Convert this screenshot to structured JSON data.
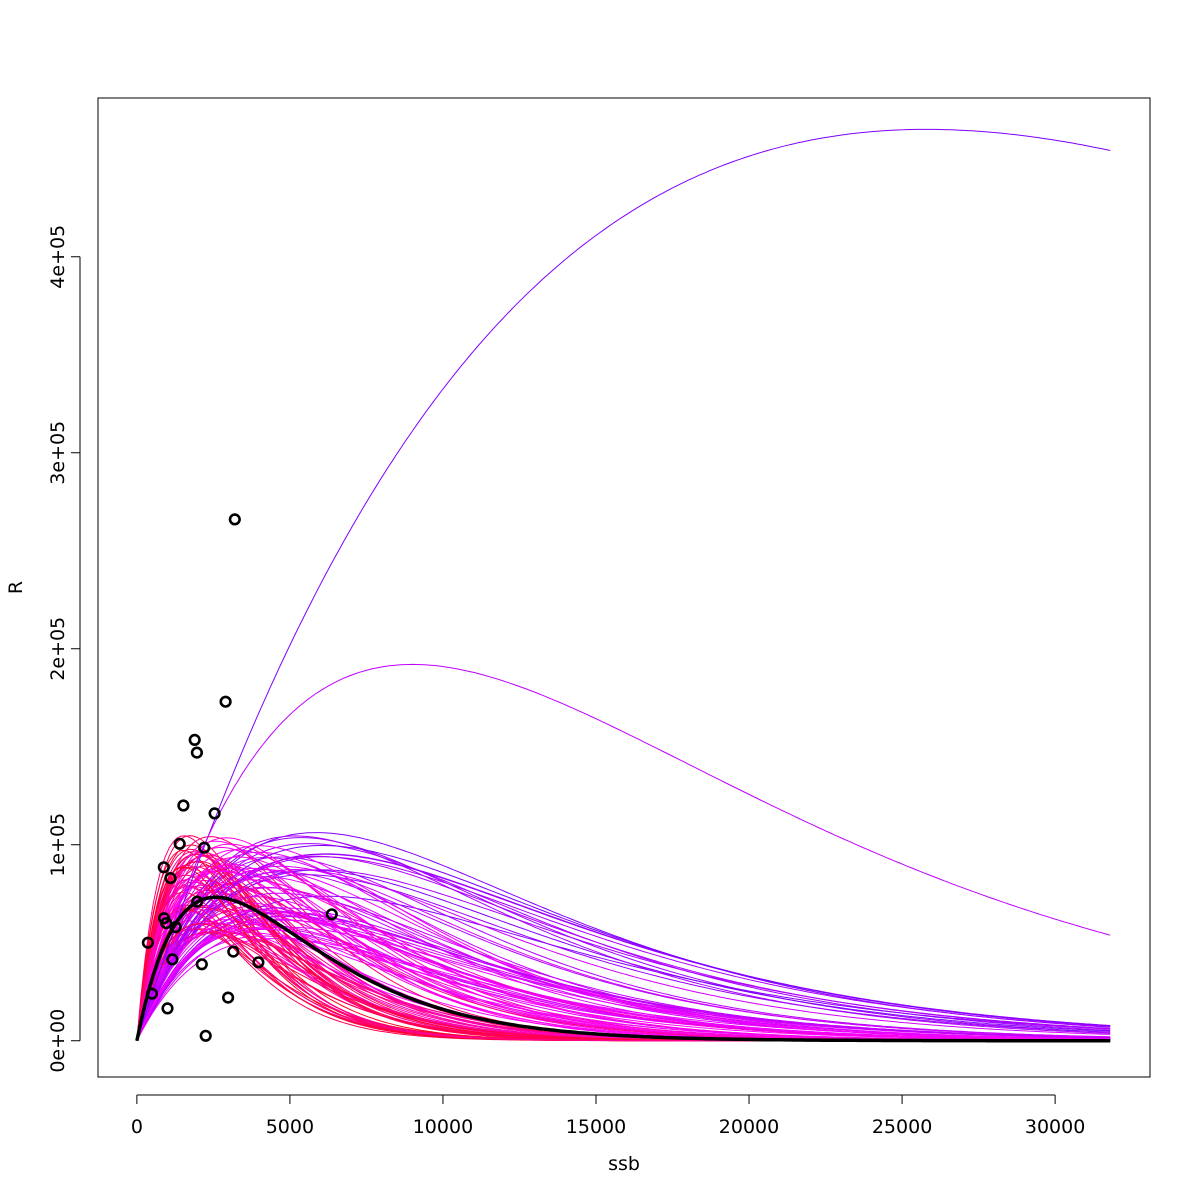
{
  "chart_data": {
    "type": "scatter",
    "title": "",
    "xlabel": "ssb",
    "ylabel": "R",
    "xlim": [
      -1270,
      33100
    ],
    "ylim": [
      -18500,
      481000
    ],
    "x_ticks": [
      {
        "value": 0,
        "label": "0"
      },
      {
        "value": 5000,
        "label": "5000"
      },
      {
        "value": 10000,
        "label": "10000"
      },
      {
        "value": 15000,
        "label": "15000"
      },
      {
        "value": 20000,
        "label": "20000"
      },
      {
        "value": 25000,
        "label": "25000"
      },
      {
        "value": 30000,
        "label": "30000"
      }
    ],
    "y_ticks": [
      {
        "value": 0,
        "label": "0e+00"
      },
      {
        "value": 100000,
        "label": "1e+05"
      },
      {
        "value": 200000,
        "label": "2e+05"
      },
      {
        "value": 300000,
        "label": "3e+05"
      },
      {
        "value": 400000,
        "label": "4e+05"
      }
    ],
    "grid": false,
    "legend": "none",
    "curve_model": "R = a * ssb * exp(-b * ssb)",
    "curve_x_max": 31800,
    "points": [
      {
        "x": 360,
        "y": 50000
      },
      {
        "x": 490,
        "y": 24000
      },
      {
        "x": 880,
        "y": 88500
      },
      {
        "x": 890,
        "y": 62500
      },
      {
        "x": 960,
        "y": 60000
      },
      {
        "x": 1000,
        "y": 16500
      },
      {
        "x": 1100,
        "y": 83000
      },
      {
        "x": 1160,
        "y": 41500
      },
      {
        "x": 1270,
        "y": 58000
      },
      {
        "x": 1400,
        "y": 100500
      },
      {
        "x": 1520,
        "y": 120000
      },
      {
        "x": 1890,
        "y": 153500
      },
      {
        "x": 1960,
        "y": 147000
      },
      {
        "x": 1970,
        "y": 71000
      },
      {
        "x": 2120,
        "y": 39000
      },
      {
        "x": 2200,
        "y": 98500
      },
      {
        "x": 2250,
        "y": 2500
      },
      {
        "x": 2540,
        "y": 116000
      },
      {
        "x": 2900,
        "y": 173000
      },
      {
        "x": 2980,
        "y": 22000
      },
      {
        "x": 3150,
        "y": 45500
      },
      {
        "x": 3200,
        "y": 266000
      },
      {
        "x": 3970,
        "y": 40000
      },
      {
        "x": 6370,
        "y": 64500
      }
    ],
    "fitted_curve": {
      "peak_ssb": 2580,
      "peak_R": 73200,
      "color": "#000000"
    },
    "bootstrap_curves": {
      "count": 120,
      "color_range": [
        "#FF0000",
        "#FF00FF",
        "#7F00FF"
      ],
      "highlighted": [
        {
          "peak_ssb": 25800,
          "peak_R": 465000,
          "color": "#7F00FF"
        },
        {
          "peak_ssb": 9000,
          "peak_R": 192000,
          "color": "#C000FF"
        }
      ]
    }
  }
}
